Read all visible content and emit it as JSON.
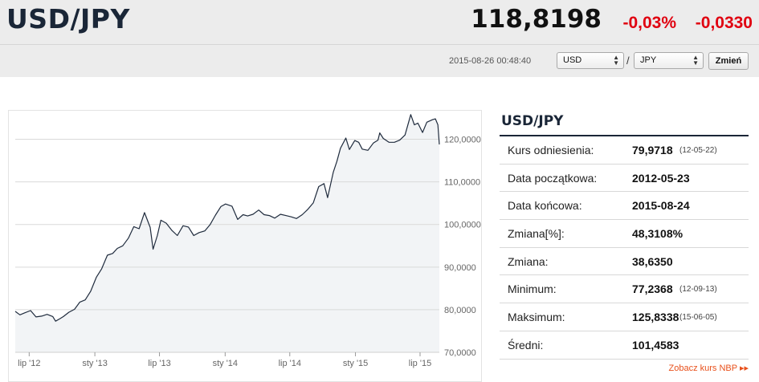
{
  "header": {
    "pair": "USD/JPY",
    "rate": "118,8198",
    "change_pct": "-0,03%",
    "change_abs": "-0,0330",
    "timestamp": "2015-08-26 00:48:40",
    "from_currency": "USD",
    "to_currency": "JPY",
    "slash": "/",
    "change_button": "Zmień"
  },
  "info": {
    "title": "USD/JPY",
    "rows": [
      {
        "label": "Kurs odniesienia:",
        "value": "79,9718",
        "sub": "(12-05-22)"
      },
      {
        "label": "Data początkowa:",
        "value": "2012-05-23",
        "sub": ""
      },
      {
        "label": "Data końcowa:",
        "value": "2015-08-24",
        "sub": ""
      },
      {
        "label": "Zmiana[%]:",
        "value": "48,3108%",
        "sub": ""
      },
      {
        "label": "Zmiana:",
        "value": "38,6350",
        "sub": ""
      },
      {
        "label": "Minimum:",
        "value": "77,2368",
        "sub": "(12-09-13)"
      },
      {
        "label": "Maksimum:",
        "value": "125,8338",
        "sub": "(15-06-05)"
      },
      {
        "label": "Średni:",
        "value": "101,4583",
        "sub": ""
      }
    ],
    "nbp_link": "Zobacz kurs NBP ▸▸"
  },
  "colors": {
    "accent_negative": "#e00010",
    "title_navy": "#1a2637",
    "line": "#1f2b3d",
    "area_fill": "#f2f4f6",
    "link": "#e8501b"
  },
  "chart_data": {
    "type": "area",
    "title": "",
    "xlabel": "",
    "ylabel": "",
    "ylim": [
      70,
      125
    ],
    "y_ticks": [
      "70,0000",
      "80,0000",
      "90,0000",
      "100,0000",
      "110,0000",
      "120,0000"
    ],
    "y_tick_values": [
      70,
      80,
      90,
      100,
      110,
      120
    ],
    "x_ticks": [
      "lip '12",
      "sty '13",
      "lip '13",
      "sty '14",
      "lip '14",
      "sty '15",
      "lip '15"
    ],
    "x_tick_dates": [
      "2012-07-01",
      "2013-01-01",
      "2013-07-01",
      "2014-01-01",
      "2014-07-01",
      "2015-01-01",
      "2015-07-01"
    ],
    "x_range": [
      "2012-05-23",
      "2015-08-24"
    ],
    "grid": true,
    "series": [
      {
        "points": [
          [
            "2012-05-23",
            79.6
          ],
          [
            "2012-06-05",
            78.8
          ],
          [
            "2012-06-20",
            79.3
          ],
          [
            "2012-07-05",
            79.8
          ],
          [
            "2012-07-20",
            78.3
          ],
          [
            "2012-08-05",
            78.5
          ],
          [
            "2012-08-20",
            78.9
          ],
          [
            "2012-09-05",
            78.4
          ],
          [
            "2012-09-13",
            77.3
          ],
          [
            "2012-09-25",
            77.9
          ],
          [
            "2012-10-05",
            78.4
          ],
          [
            "2012-10-20",
            79.4
          ],
          [
            "2012-11-05",
            80.1
          ],
          [
            "2012-11-20",
            81.8
          ],
          [
            "2012-12-05",
            82.3
          ],
          [
            "2012-12-20",
            84.3
          ],
          [
            "2013-01-05",
            87.6
          ],
          [
            "2013-01-20",
            89.6
          ],
          [
            "2013-02-05",
            92.8
          ],
          [
            "2013-02-20",
            93.2
          ],
          [
            "2013-03-05",
            94.4
          ],
          [
            "2013-03-20",
            95.0
          ],
          [
            "2013-04-05",
            96.8
          ],
          [
            "2013-04-20",
            99.5
          ],
          [
            "2013-05-05",
            99.0
          ],
          [
            "2013-05-20",
            102.8
          ],
          [
            "2013-06-05",
            99.3
          ],
          [
            "2013-06-13",
            94.2
          ],
          [
            "2013-06-25",
            97.4
          ],
          [
            "2013-07-05",
            101.0
          ],
          [
            "2013-07-20",
            100.3
          ],
          [
            "2013-08-05",
            98.6
          ],
          [
            "2013-08-20",
            97.4
          ],
          [
            "2013-09-05",
            99.7
          ],
          [
            "2013-09-20",
            99.4
          ],
          [
            "2013-10-05",
            97.4
          ],
          [
            "2013-10-20",
            98.1
          ],
          [
            "2013-11-05",
            98.5
          ],
          [
            "2013-11-20",
            100.0
          ],
          [
            "2013-12-05",
            102.2
          ],
          [
            "2013-12-20",
            104.2
          ],
          [
            "2014-01-02",
            104.8
          ],
          [
            "2014-01-20",
            104.3
          ],
          [
            "2014-02-05",
            101.2
          ],
          [
            "2014-02-20",
            102.3
          ],
          [
            "2014-03-05",
            102.0
          ],
          [
            "2014-03-20",
            102.4
          ],
          [
            "2014-04-05",
            103.4
          ],
          [
            "2014-04-20",
            102.3
          ],
          [
            "2014-05-05",
            102.1
          ],
          [
            "2014-05-20",
            101.5
          ],
          [
            "2014-06-05",
            102.4
          ],
          [
            "2014-06-20",
            102.1
          ],
          [
            "2014-07-05",
            101.8
          ],
          [
            "2014-07-20",
            101.4
          ],
          [
            "2014-08-05",
            102.3
          ],
          [
            "2014-08-20",
            103.5
          ],
          [
            "2014-09-05",
            105.1
          ],
          [
            "2014-09-20",
            108.9
          ],
          [
            "2014-10-05",
            109.6
          ],
          [
            "2014-10-15",
            106.3
          ],
          [
            "2014-10-31",
            112.3
          ],
          [
            "2014-11-10",
            114.8
          ],
          [
            "2014-11-20",
            117.9
          ],
          [
            "2014-12-05",
            120.3
          ],
          [
            "2014-12-15",
            117.6
          ],
          [
            "2014-12-30",
            119.7
          ],
          [
            "2015-01-10",
            119.3
          ],
          [
            "2015-01-20",
            117.7
          ],
          [
            "2015-02-05",
            117.4
          ],
          [
            "2015-02-20",
            119.1
          ],
          [
            "2015-03-05",
            119.8
          ],
          [
            "2015-03-10",
            121.5
          ],
          [
            "2015-03-20",
            120.2
          ],
          [
            "2015-04-05",
            119.3
          ],
          [
            "2015-04-20",
            119.3
          ],
          [
            "2015-05-05",
            119.8
          ],
          [
            "2015-05-20",
            121.0
          ],
          [
            "2015-06-05",
            125.8
          ],
          [
            "2015-06-15",
            123.4
          ],
          [
            "2015-06-25",
            123.8
          ],
          [
            "2015-07-08",
            121.6
          ],
          [
            "2015-07-20",
            124.0
          ],
          [
            "2015-08-05",
            124.6
          ],
          [
            "2015-08-13",
            124.8
          ],
          [
            "2015-08-20",
            123.4
          ],
          [
            "2015-08-24",
            118.8
          ]
        ]
      }
    ]
  }
}
